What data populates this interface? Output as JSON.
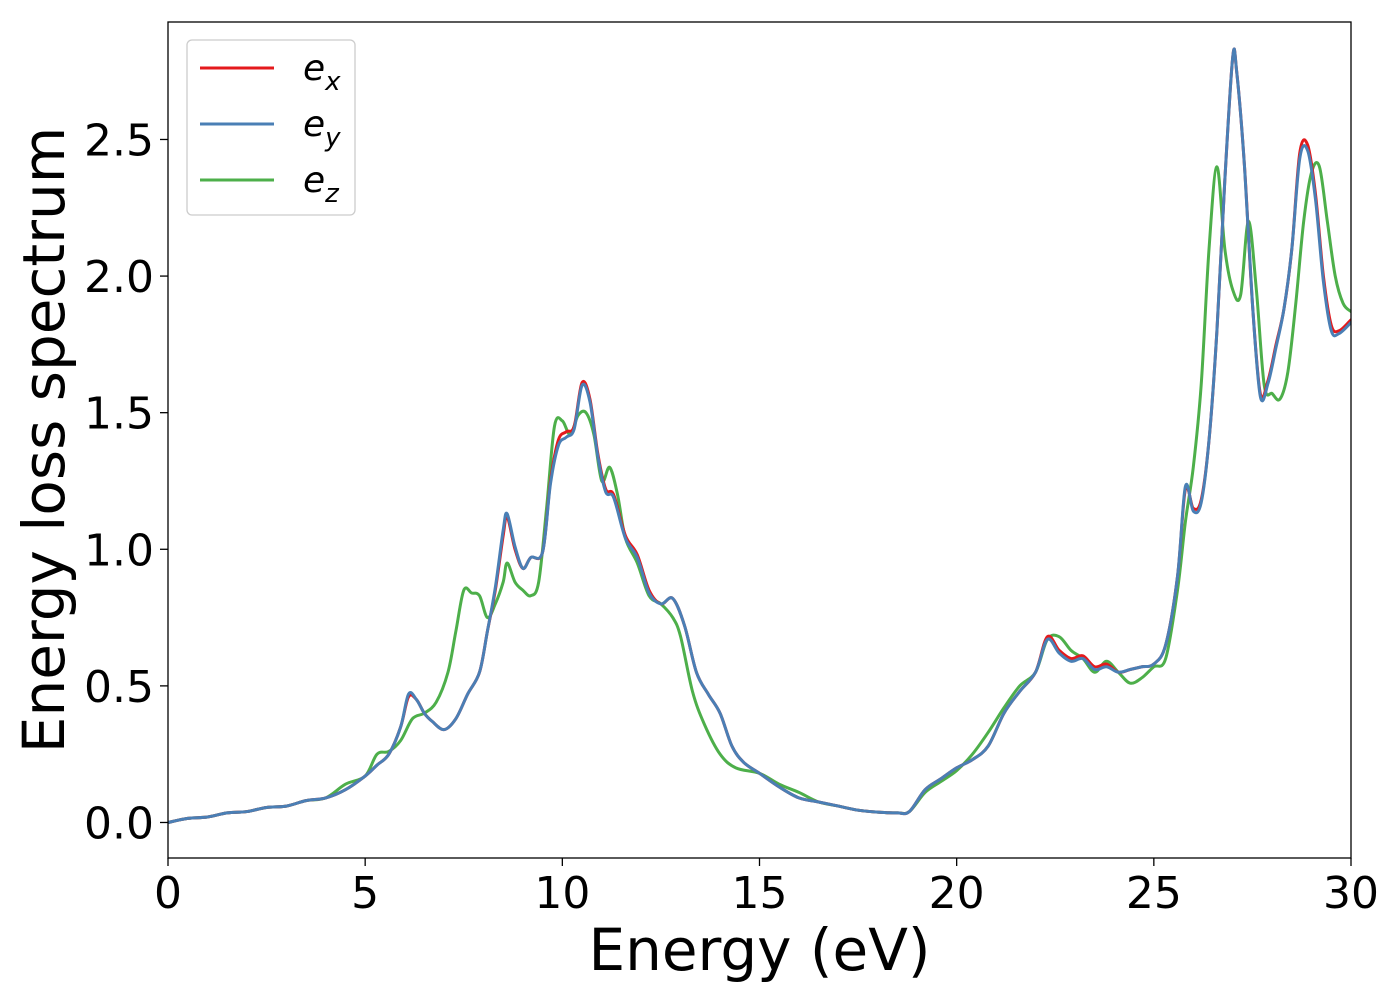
{
  "chart_data": {
    "type": "line",
    "title": "",
    "xlabel": "Energy (eV)",
    "ylabel": "Energy loss spectrum",
    "xlim": [
      0,
      30
    ],
    "ylim": [
      -0.13,
      2.93
    ],
    "xticks": [
      0,
      5,
      10,
      15,
      20,
      25,
      30
    ],
    "xtick_labels": [
      "0",
      "5",
      "10",
      "15",
      "20",
      "25",
      "30"
    ],
    "yticks": [
      0.0,
      0.5,
      1.0,
      1.5,
      2.0,
      2.5
    ],
    "ytick_labels": [
      "0.0",
      "0.5",
      "1.0",
      "1.5",
      "2.0",
      "2.5"
    ],
    "grid": false,
    "legend_position": "top-left",
    "series": [
      {
        "name": "e_x",
        "legend_base": "e",
        "legend_sub": "x",
        "color": "#e41a1c",
        "x": [
          0,
          0.5,
          1,
          1.5,
          2,
          2.5,
          3,
          3.5,
          4,
          4.5,
          5,
          5.3,
          5.6,
          5.9,
          6.1,
          6.3,
          6.5,
          6.7,
          7,
          7.3,
          7.6,
          7.9,
          8.1,
          8.3,
          8.5,
          8.6,
          8.8,
          9,
          9.2,
          9.5,
          9.7,
          9.9,
          10.1,
          10.3,
          10.5,
          10.7,
          10.9,
          11.1,
          11.3,
          11.6,
          11.9,
          12.2,
          12.5,
          12.8,
          13.1,
          13.4,
          13.7,
          14,
          14.3,
          14.6,
          15,
          15.5,
          16,
          16.5,
          17,
          17.5,
          18,
          18.5,
          18.8,
          19.2,
          19.6,
          20,
          20.4,
          20.8,
          21.2,
          21.6,
          22,
          22.3,
          22.6,
          22.9,
          23.2,
          23.5,
          23.8,
          24.1,
          24.4,
          24.7,
          25,
          25.3,
          25.6,
          25.8,
          26,
          26.2,
          26.4,
          26.6,
          26.8,
          27,
          27.1,
          27.3,
          27.5,
          27.7,
          27.9,
          28.1,
          28.3,
          28.5,
          28.7,
          28.9,
          29.1,
          29.3,
          29.5,
          29.7,
          30
        ],
        "y": [
          0,
          0.015,
          0.02,
          0.035,
          0.04,
          0.055,
          0.06,
          0.08,
          0.09,
          0.12,
          0.17,
          0.21,
          0.25,
          0.35,
          0.46,
          0.45,
          0.4,
          0.37,
          0.34,
          0.38,
          0.47,
          0.55,
          0.7,
          0.85,
          1.05,
          1.12,
          1.0,
          0.93,
          0.97,
          0.99,
          1.25,
          1.4,
          1.43,
          1.45,
          1.61,
          1.55,
          1.35,
          1.22,
          1.2,
          1.05,
          0.98,
          0.85,
          0.8,
          0.82,
          0.72,
          0.55,
          0.47,
          0.4,
          0.28,
          0.22,
          0.18,
          0.13,
          0.09,
          0.075,
          0.06,
          0.045,
          0.038,
          0.035,
          0.04,
          0.12,
          0.16,
          0.2,
          0.23,
          0.28,
          0.4,
          0.48,
          0.55,
          0.68,
          0.63,
          0.6,
          0.61,
          0.57,
          0.58,
          0.55,
          0.56,
          0.57,
          0.58,
          0.65,
          0.9,
          1.22,
          1.15,
          1.18,
          1.4,
          1.8,
          2.35,
          2.8,
          2.75,
          2.4,
          1.9,
          1.57,
          1.62,
          1.75,
          1.88,
          2.1,
          2.45,
          2.48,
          2.3,
          2.0,
          1.82,
          1.8,
          1.84
        ]
      },
      {
        "name": "e_y",
        "legend_base": "e",
        "legend_sub": "y",
        "color": "#4a7fb5",
        "x": [
          0,
          0.5,
          1,
          1.5,
          2,
          2.5,
          3,
          3.5,
          4,
          4.5,
          5,
          5.3,
          5.6,
          5.9,
          6.1,
          6.3,
          6.5,
          6.7,
          7,
          7.3,
          7.6,
          7.9,
          8.1,
          8.3,
          8.5,
          8.6,
          8.8,
          9,
          9.2,
          9.5,
          9.7,
          9.9,
          10.1,
          10.3,
          10.5,
          10.7,
          10.9,
          11.1,
          11.3,
          11.6,
          11.9,
          12.2,
          12.5,
          12.8,
          13.1,
          13.4,
          13.7,
          14,
          14.3,
          14.6,
          15,
          15.5,
          16,
          16.5,
          17,
          17.5,
          18,
          18.5,
          18.8,
          19.2,
          19.6,
          20,
          20.4,
          20.8,
          21.2,
          21.6,
          22,
          22.3,
          22.6,
          22.9,
          23.2,
          23.5,
          23.8,
          24.1,
          24.4,
          24.7,
          25,
          25.3,
          25.6,
          25.8,
          26,
          26.2,
          26.4,
          26.6,
          26.8,
          27,
          27.1,
          27.3,
          27.5,
          27.7,
          27.9,
          28.1,
          28.3,
          28.5,
          28.7,
          28.9,
          29.1,
          29.3,
          29.5,
          29.7,
          30
        ],
        "y": [
          0,
          0.015,
          0.02,
          0.035,
          0.04,
          0.055,
          0.06,
          0.08,
          0.09,
          0.12,
          0.17,
          0.21,
          0.25,
          0.35,
          0.47,
          0.45,
          0.4,
          0.37,
          0.34,
          0.38,
          0.47,
          0.55,
          0.7,
          0.86,
          1.07,
          1.13,
          1.01,
          0.93,
          0.97,
          0.99,
          1.24,
          1.38,
          1.41,
          1.44,
          1.6,
          1.54,
          1.34,
          1.21,
          1.19,
          1.04,
          0.97,
          0.84,
          0.8,
          0.82,
          0.72,
          0.55,
          0.47,
          0.4,
          0.28,
          0.22,
          0.18,
          0.13,
          0.09,
          0.075,
          0.06,
          0.045,
          0.038,
          0.035,
          0.04,
          0.12,
          0.16,
          0.2,
          0.23,
          0.28,
          0.4,
          0.48,
          0.55,
          0.67,
          0.62,
          0.59,
          0.6,
          0.56,
          0.57,
          0.55,
          0.56,
          0.57,
          0.58,
          0.65,
          0.9,
          1.23,
          1.14,
          1.17,
          1.4,
          1.8,
          2.35,
          2.8,
          2.75,
          2.4,
          1.9,
          1.56,
          1.61,
          1.74,
          1.88,
          2.1,
          2.43,
          2.46,
          2.28,
          1.98,
          1.8,
          1.79,
          1.83
        ]
      },
      {
        "name": "e_z",
        "legend_base": "e",
        "legend_sub": "z",
        "color": "#4daf4a",
        "x": [
          0,
          0.5,
          1,
          1.5,
          2,
          2.5,
          3,
          3.5,
          4,
          4.5,
          5,
          5.3,
          5.6,
          5.9,
          6.2,
          6.5,
          6.8,
          7.1,
          7.3,
          7.5,
          7.7,
          7.9,
          8.1,
          8.3,
          8.5,
          8.6,
          8.8,
          9,
          9.2,
          9.4,
          9.6,
          9.8,
          10,
          10.2,
          10.4,
          10.6,
          10.8,
          11,
          11.2,
          11.4,
          11.6,
          11.9,
          12.2,
          12.5,
          12.8,
          13,
          13.3,
          13.6,
          14,
          14.4,
          15,
          15.5,
          16,
          16.5,
          17,
          17.5,
          18,
          18.5,
          18.8,
          19.2,
          19.6,
          20,
          20.4,
          20.8,
          21.2,
          21.6,
          22,
          22.3,
          22.6,
          22.9,
          23.2,
          23.5,
          23.8,
          24.1,
          24.4,
          24.7,
          25,
          25.3,
          25.6,
          25.8,
          26,
          26.2,
          26.4,
          26.6,
          26.8,
          27,
          27.2,
          27.4,
          27.6,
          27.8,
          28,
          28.2,
          28.4,
          28.6,
          28.8,
          29,
          29.2,
          29.4,
          29.6,
          29.8,
          30
        ],
        "y": [
          0,
          0.015,
          0.02,
          0.035,
          0.04,
          0.055,
          0.06,
          0.08,
          0.09,
          0.14,
          0.17,
          0.25,
          0.26,
          0.3,
          0.38,
          0.4,
          0.44,
          0.55,
          0.7,
          0.85,
          0.84,
          0.83,
          0.75,
          0.8,
          0.88,
          0.95,
          0.88,
          0.85,
          0.83,
          0.88,
          1.15,
          1.45,
          1.47,
          1.42,
          1.49,
          1.5,
          1.42,
          1.25,
          1.3,
          1.2,
          1.04,
          0.95,
          0.83,
          0.8,
          0.75,
          0.68,
          0.48,
          0.36,
          0.25,
          0.2,
          0.18,
          0.14,
          0.11,
          0.075,
          0.06,
          0.045,
          0.038,
          0.035,
          0.04,
          0.11,
          0.15,
          0.19,
          0.25,
          0.33,
          0.42,
          0.5,
          0.55,
          0.67,
          0.68,
          0.63,
          0.6,
          0.55,
          0.59,
          0.55,
          0.51,
          0.53,
          0.57,
          0.6,
          0.85,
          1.1,
          1.3,
          1.6,
          2.1,
          2.4,
          2.1,
          1.95,
          1.93,
          2.2,
          1.95,
          1.6,
          1.57,
          1.55,
          1.65,
          1.9,
          2.2,
          2.38,
          2.4,
          2.2,
          2.0,
          1.9,
          1.87
        ]
      }
    ]
  }
}
